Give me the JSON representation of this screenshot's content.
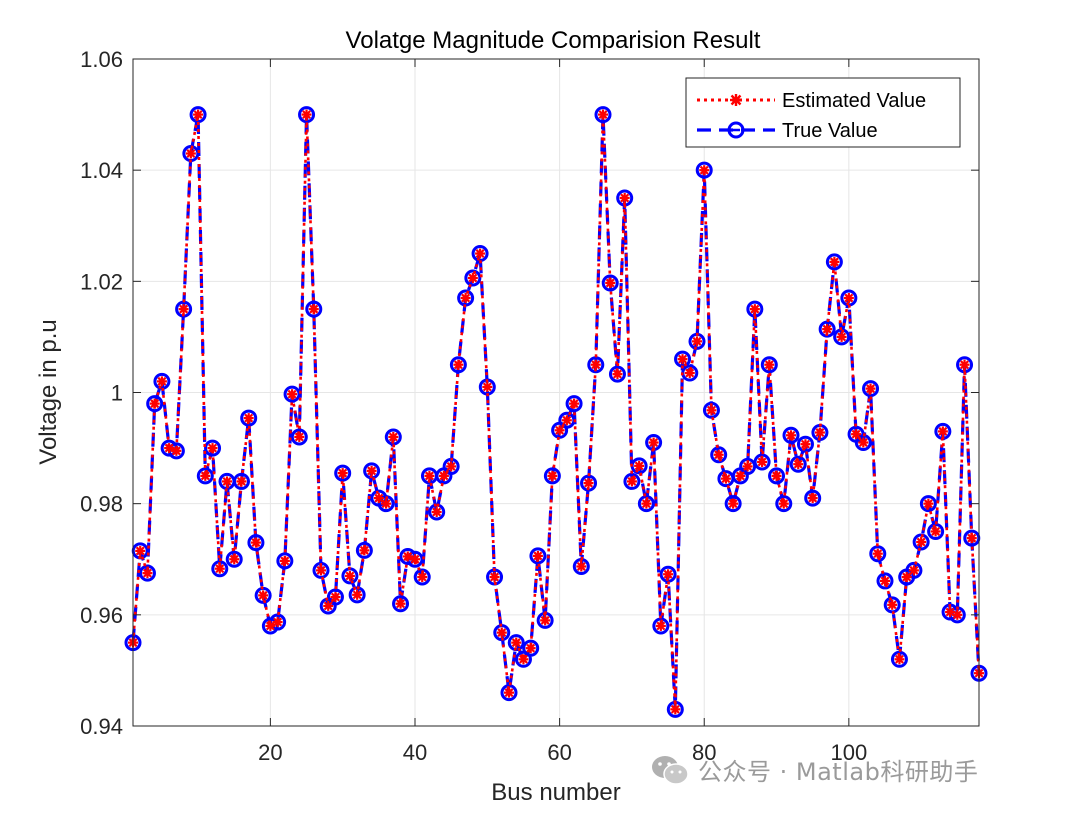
{
  "chart_data": {
    "type": "line",
    "title": "Volatge Magnitude Comparision Result",
    "xlabel": "Bus number",
    "ylabel": "Voltage in p.u",
    "xlim": [
      1,
      118
    ],
    "ylim": [
      0.94,
      1.06
    ],
    "xticks": [
      20,
      40,
      60,
      80,
      100
    ],
    "yticks": [
      0.94,
      0.96,
      0.98,
      1,
      1.02,
      1.04,
      1.06
    ],
    "ytick_labels": [
      "0.94",
      "0.96",
      "0.98",
      "1",
      "1.02",
      "1.04",
      "1.06"
    ],
    "grid": true,
    "legend_position": "top-right",
    "x": [
      1,
      2,
      3,
      4,
      5,
      6,
      7,
      8,
      9,
      10,
      11,
      12,
      13,
      14,
      15,
      16,
      17,
      18,
      19,
      20,
      21,
      22,
      23,
      24,
      25,
      26,
      27,
      28,
      29,
      30,
      31,
      32,
      33,
      34,
      35,
      36,
      37,
      38,
      39,
      40,
      41,
      42,
      43,
      44,
      45,
      46,
      47,
      48,
      49,
      50,
      51,
      52,
      53,
      54,
      55,
      56,
      57,
      58,
      59,
      60,
      61,
      62,
      63,
      64,
      65,
      66,
      67,
      68,
      69,
      70,
      71,
      72,
      73,
      74,
      75,
      76,
      77,
      78,
      79,
      80,
      81,
      82,
      83,
      84,
      85,
      86,
      87,
      88,
      89,
      90,
      91,
      92,
      93,
      94,
      95,
      96,
      97,
      98,
      99,
      100,
      101,
      102,
      103,
      104,
      105,
      106,
      107,
      108,
      109,
      110,
      111,
      112,
      113,
      114,
      115,
      116,
      117,
      118
    ],
    "series": [
      {
        "name": "Estimated Value",
        "color": "#ff0000",
        "values": [
          0.955,
          0.9715,
          0.9675,
          0.998,
          1.002,
          0.99,
          0.9895,
          1.015,
          1.043,
          1.05,
          0.985,
          0.99,
          0.9683,
          0.984,
          0.97,
          0.984,
          0.9954,
          0.973,
          0.9635,
          0.958,
          0.9587,
          0.9697,
          0.9997,
          0.992,
          1.05,
          1.015,
          0.968,
          0.9616,
          0.9632,
          0.9855,
          0.967,
          0.9636,
          0.9716,
          0.9859,
          0.981,
          0.98,
          0.992,
          0.962,
          0.9705,
          0.97,
          0.9668,
          0.985,
          0.9785,
          0.985,
          0.9867,
          1.005,
          1.017,
          1.0206,
          1.025,
          1.001,
          0.9668,
          0.9568,
          0.946,
          0.955,
          0.952,
          0.954,
          0.9706,
          0.959,
          0.985,
          0.9932,
          0.995,
          0.998,
          0.9687,
          0.9837,
          1.005,
          1.05,
          1.0197,
          1.0033,
          1.035,
          0.984,
          0.9868,
          0.98,
          0.991,
          0.958,
          0.9673,
          0.943,
          1.006,
          1.0035,
          1.0092,
          1.04,
          0.9968,
          0.9888,
          0.9845,
          0.98,
          0.985,
          0.9867,
          1.015,
          0.9875,
          1.005,
          0.985,
          0.98,
          0.9923,
          0.9871,
          0.9907,
          0.981,
          0.9928,
          1.0114,
          1.0235,
          1.01,
          1.017,
          0.9925,
          0.991,
          1.0007,
          0.971,
          0.9661,
          0.9618,
          0.952,
          0.9668,
          0.968,
          0.9731,
          0.98,
          0.975,
          0.993,
          0.9605,
          0.96,
          1.005,
          0.9738,
          0.9495
        ]
      },
      {
        "name": "True Value",
        "color": "#0000ff",
        "values": [
          0.955,
          0.9715,
          0.9675,
          0.998,
          1.002,
          0.99,
          0.9895,
          1.015,
          1.043,
          1.05,
          0.985,
          0.99,
          0.9683,
          0.984,
          0.97,
          0.984,
          0.9954,
          0.973,
          0.9635,
          0.958,
          0.9587,
          0.9697,
          0.9997,
          0.992,
          1.05,
          1.015,
          0.968,
          0.9616,
          0.9632,
          0.9855,
          0.967,
          0.9636,
          0.9716,
          0.9859,
          0.981,
          0.98,
          0.992,
          0.962,
          0.9705,
          0.97,
          0.9668,
          0.985,
          0.9785,
          0.985,
          0.9867,
          1.005,
          1.017,
          1.0206,
          1.025,
          1.001,
          0.9668,
          0.9568,
          0.946,
          0.955,
          0.952,
          0.954,
          0.9706,
          0.959,
          0.985,
          0.9932,
          0.995,
          0.998,
          0.9687,
          0.9837,
          1.005,
          1.05,
          1.0197,
          1.0033,
          1.035,
          0.984,
          0.9868,
          0.98,
          0.991,
          0.958,
          0.9673,
          0.943,
          1.006,
          1.0035,
          1.0092,
          1.04,
          0.9968,
          0.9888,
          0.9845,
          0.98,
          0.985,
          0.9867,
          1.015,
          0.9875,
          1.005,
          0.985,
          0.98,
          0.9923,
          0.9871,
          0.9907,
          0.981,
          0.9928,
          1.0114,
          1.0235,
          1.01,
          1.017,
          0.9925,
          0.991,
          1.0007,
          0.971,
          0.9661,
          0.9618,
          0.952,
          0.9668,
          0.968,
          0.9731,
          0.98,
          0.975,
          0.993,
          0.9605,
          0.96,
          1.005,
          0.9738,
          0.9495
        ]
      }
    ]
  },
  "watermark": {
    "text": "公众号 · Matlab科研助手",
    "icon": "wechat-icon"
  }
}
